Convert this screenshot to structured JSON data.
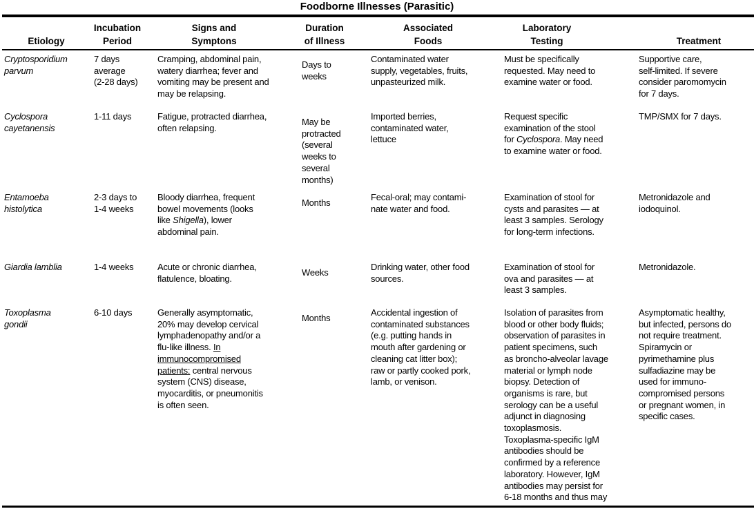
{
  "title": "Foodborne Illnesses (Parasitic)",
  "headers": [
    "Etiology",
    "Incubation\nPeriod",
    "Signs and\nSymptons",
    "Duration\nof Illness",
    "Associated\nFoods",
    "Laboratory\nTesting\n",
    "Treatment"
  ],
  "rows": [
    {
      "cells": [
        [
          {
            "t": "Cryptosporidium\nparvum",
            "i": true
          }
        ],
        [
          {
            "t": "7 days\naverage\n(2-28 days)"
          }
        ],
        [
          {
            "t": "Cramping, abdominal pain,\nwatery diarrhea; fever and\nvomiting may be present and\nmay be relapsing."
          }
        ],
        [
          {
            "t": "Days to\nweeks"
          }
        ],
        [
          {
            "t": "Contaminated water\nsupply, vegetables, fruits,\nunpasteurized milk."
          }
        ],
        [
          {
            "t": "Must be specifically\nrequested. May need to\nexamine water or food."
          }
        ],
        [
          {
            "t": "Supportive care,\nself-limited. If severe\nconsider paromomycin\nfor 7 days."
          }
        ]
      ]
    },
    {
      "cells": [
        [
          {
            "t": "Cyclospora\ncayetanensis",
            "i": true
          }
        ],
        [
          {
            "t": "1-11 days"
          }
        ],
        [
          {
            "t": "Fatigue, protracted diarrhea,\noften relapsing."
          }
        ],
        [
          {
            "t": "May be\nprotracted\n(several\nweeks to\nseveral\nmonths)"
          }
        ],
        [
          {
            "t": "Imported berries,\ncontaminated water,\nlettuce"
          }
        ],
        [
          {
            "t": "Request specific\nexamination of the stool\nfor "
          },
          {
            "t": "Cyclospora",
            "i": true
          },
          {
            "t": ". May need\nto examine water or food."
          }
        ],
        [
          {
            "t": "TMP/SMX for 7 days."
          }
        ]
      ]
    },
    {
      "cells": [
        [
          {
            "t": "Entamoeba\nhistolytica",
            "i": true
          }
        ],
        [
          {
            "t": "2-3 days to\n1-4 weeks"
          }
        ],
        [
          {
            "t": "Bloody diarrhea, frequent\nbowel movements (looks\nlike "
          },
          {
            "t": "Shigella",
            "i": true
          },
          {
            "t": "), lower\nabdominal pain."
          }
        ],
        [
          {
            "t": "Months"
          }
        ],
        [
          {
            "t": "Fecal-oral; may contami-\nnate water and food."
          }
        ],
        [
          {
            "t": "Examination of stool for\ncysts and parasites — at\nleast 3 samples. Serology\nfor long-term infections."
          }
        ],
        [
          {
            "t": "Metronidazole and\niodoquinol."
          }
        ]
      ]
    },
    {
      "cells": [
        [
          {
            "t": "Giardia lamblia",
            "i": true
          }
        ],
        [
          {
            "t": "1-4 weeks"
          }
        ],
        [
          {
            "t": "Acute or chronic diarrhea,\nflatulence, bloating."
          }
        ],
        [
          {
            "t": "Weeks"
          }
        ],
        [
          {
            "t": "Drinking water, other food\nsources."
          }
        ],
        [
          {
            "t": "Examination of stool for\nova and parasites — at\nleast 3 samples."
          }
        ],
        [
          {
            "t": "Metronidazole."
          }
        ]
      ]
    },
    {
      "cells": [
        [
          {
            "t": "Toxoplasma\ngondii",
            "i": true
          }
        ],
        [
          {
            "t": "6-10 days"
          }
        ],
        [
          {
            "t": "Generally asymptomatic,\n20% may develop cervical\nlymphadenopathy and/or a\nflu-like illness. "
          },
          {
            "t": "In\nimmunocompromised\npatients:",
            "u": true
          },
          {
            "t": " central nervous\nsystem (CNS) disease,\nmyocarditis, or pneumonitis\nis often seen."
          }
        ],
        [
          {
            "t": "Months"
          }
        ],
        [
          {
            "t": "Accidental ingestion of\ncontaminated substances\n(e.g. putting hands in\nmouth after gardening or\ncleaning cat litter box);\nraw or partly cooked pork,\nlamb, or venison."
          }
        ],
        [
          {
            "t": "Isolation of parasites from\nblood or other body fluids;\nobservation of parasites in\npatient specimens, such\nas broncho-alveolar lavage\nmaterial or lymph node\nbiopsy. Detection of\norganisms is rare, but\nserology can be a useful\nadjunct in diagnosing\ntoxoplasmosis.\nToxoplasma-specific IgM\nantibodies should be\nconfirmed by a reference\nlaboratory. However, IgM\nantibodies may persist for\n6-18 months and thus may"
          }
        ],
        [
          {
            "t": "Asymptomatic healthy,\nbut infected, persons do\nnot require treatment.\nSpiramycin or\npyrimethamine plus\nsulfadiazine may be\nused for immuno-\ncompromised persons\nor pregnant women, in\nspecific cases."
          }
        ]
      ]
    }
  ]
}
